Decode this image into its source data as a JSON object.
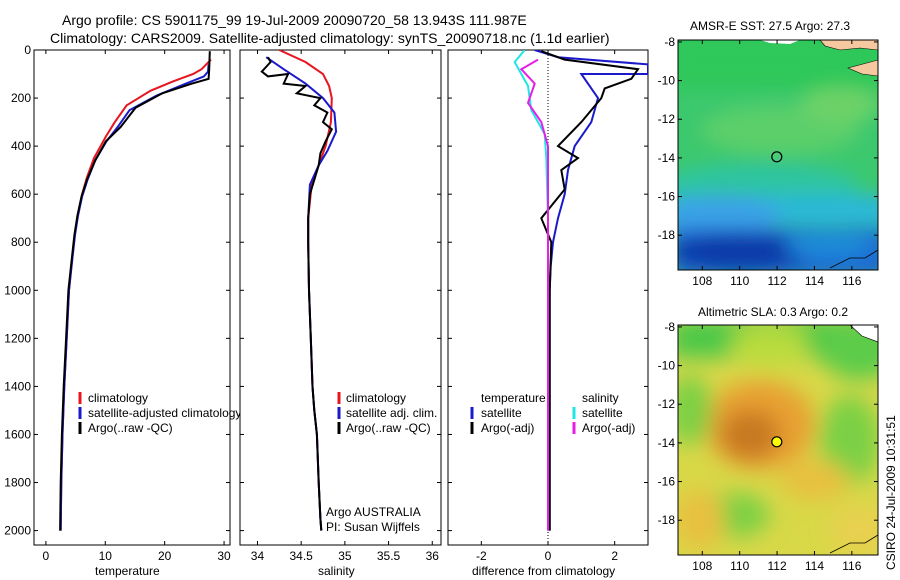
{
  "header": {
    "line1": "Argo profile: CS 5901175_99 19-Jul-2009 20090720_58 13.943S 111.987E",
    "line2": "Climatology: CARS2009. Satellite-adjusted climatology: synTS_20090718.nc (1.1d earlier)"
  },
  "footer": {
    "credit": "CSIRO 24-Jul-2009 10:31:51"
  },
  "colors": {
    "climatology": "#e8141e",
    "satellite": "#1a1acc",
    "argo": "#000000",
    "sal_satellite": "#1ee6e6",
    "sal_argo": "#e61ee6",
    "coast": "#f5c8a0"
  },
  "chart_data": [
    {
      "type": "line",
      "id": "temperature",
      "xlabel": "temperature",
      "ylabel": "",
      "xlim": [
        -2,
        31
      ],
      "ylim": [
        2060,
        0
      ],
      "xticks": [
        0,
        10,
        20,
        30
      ],
      "yticks": [
        0,
        200,
        400,
        600,
        800,
        1000,
        1200,
        1400,
        1600,
        1800,
        2000
      ],
      "legend": [
        "climatology",
        "satellite-adjusted climatology",
        "Argo(..raw -QC)"
      ],
      "series": [
        {
          "name": "climatology",
          "color": "#e8141e",
          "x": [
            27.8,
            26.2,
            24.8,
            21.5,
            17.6,
            13.6,
            11.6,
            10.1,
            8.1,
            6.9,
            6.1,
            5.4,
            4.9,
            4.5,
            3.9,
            3.5,
            3.1,
            2.8,
            2.6,
            2.5
          ],
          "y": [
            40,
            80,
            100,
            130,
            170,
            230,
            300,
            360,
            450,
            530,
            600,
            680,
            760,
            850,
            1000,
            1200,
            1400,
            1600,
            1800,
            2000
          ]
        },
        {
          "name": "satellite",
          "color": "#1a1acc",
          "x": [
            27.4,
            27.3,
            26.6,
            23.6,
            18.6,
            14.1,
            12.1,
            10.2,
            8.3,
            7.0,
            6.1,
            5.4,
            4.9,
            4.5,
            3.9,
            3.5,
            3.1,
            2.8,
            2.6,
            2.5
          ],
          "y": [
            60,
            90,
            110,
            140,
            190,
            250,
            320,
            380,
            460,
            540,
            610,
            690,
            770,
            860,
            1000,
            1200,
            1400,
            1600,
            1800,
            2000
          ]
        },
        {
          "name": "Argo(..raw -QC)",
          "color": "#000000",
          "x": [
            27.6,
            27.5,
            27.4,
            24.6,
            19.6,
            15.1,
            12.6,
            10.1,
            8.3,
            6.9,
            6.0,
            5.3,
            4.8,
            4.4,
            3.8,
            3.4,
            3.0,
            2.7,
            2.5,
            2.4
          ],
          "y": [
            5,
            80,
            120,
            140,
            180,
            240,
            320,
            380,
            460,
            540,
            610,
            690,
            770,
            860,
            1000,
            1200,
            1400,
            1600,
            1800,
            2000
          ]
        }
      ]
    },
    {
      "type": "line",
      "id": "salinity",
      "xlabel": "salinity",
      "ylabel": "",
      "xlim": [
        33.8,
        36.1
      ],
      "ylim": [
        2060,
        0
      ],
      "xticks": [
        34,
        34.5,
        35,
        35.5,
        36
      ],
      "xticklabels": [
        "34",
        "34.5",
        "35",
        "35.5",
        "36"
      ],
      "legend": [
        "climatology",
        "satellite adj. clim.",
        "Argo(..raw -QC)"
      ],
      "annotation": [
        "Argo AUSTRALIA",
        "PI: Susan Wijffels"
      ],
      "series": [
        {
          "name": "climatology",
          "color": "#e8141e",
          "x": [
            34.25,
            34.55,
            34.75,
            34.82,
            34.85,
            34.84,
            34.78,
            34.7,
            34.62,
            34.58,
            34.58,
            34.59,
            34.61,
            34.63,
            34.65,
            34.68,
            34.7,
            34.72,
            34.73
          ],
          "y": [
            0,
            50,
            100,
            150,
            200,
            300,
            400,
            480,
            560,
            700,
            800,
            1000,
            1200,
            1400,
            1500,
            1600,
            1800,
            1950,
            2000
          ]
        },
        {
          "name": "satellite",
          "color": "#1a1acc",
          "x": [
            34.1,
            34.3,
            34.55,
            34.75,
            34.88,
            34.9,
            34.8,
            34.7,
            34.6,
            34.58,
            34.58,
            34.59,
            34.61,
            34.63,
            34.65,
            34.68,
            34.7,
            34.72,
            34.73
          ],
          "y": [
            30,
            80,
            140,
            200,
            260,
            340,
            420,
            480,
            560,
            700,
            800,
            1000,
            1200,
            1400,
            1500,
            1600,
            1800,
            1950,
            2000
          ]
        },
        {
          "name": "Argo(..raw -QC)",
          "color": "#000000",
          "x": [
            34.12,
            34.15,
            34.05,
            34.12,
            34.35,
            34.3,
            34.55,
            34.45,
            34.72,
            34.65,
            34.8,
            34.75,
            34.85,
            34.78,
            34.72,
            34.7,
            34.65,
            34.6,
            34.58,
            34.58,
            34.59,
            34.61,
            34.63,
            34.65,
            34.68,
            34.7,
            34.72,
            34.73
          ],
          "y": [
            30,
            50,
            90,
            110,
            100,
            140,
            150,
            180,
            200,
            230,
            260,
            300,
            330,
            380,
            430,
            480,
            540,
            600,
            700,
            800,
            1000,
            1200,
            1400,
            1500,
            1600,
            1800,
            1950,
            2000
          ]
        }
      ]
    },
    {
      "type": "line",
      "id": "difference",
      "xlabel": "difference from climatology",
      "ylabel": "",
      "xlim": [
        -3,
        3
      ],
      "ylim": [
        2060,
        0
      ],
      "xticks": [
        -2,
        0,
        2
      ],
      "legend_temperature": [
        "temperature",
        "satellite",
        "Argo(-adj)"
      ],
      "legend_salinity": [
        "salinity",
        "satellite",
        "Argo(-adj)"
      ],
      "series": [
        {
          "name": "temperature satellite",
          "color": "#1a1acc",
          "x": [
            -0.4,
            0.3,
            3.0,
            3.0,
            1.0,
            1.5,
            1.3,
            0.8,
            0.6,
            0.5,
            0.3,
            0.15,
            0.08,
            0.05,
            0.05,
            0.05,
            0.05
          ],
          "y": [
            0,
            30,
            60,
            100,
            100,
            200,
            300,
            400,
            500,
            600,
            700,
            800,
            900,
            1000,
            1400,
            1800,
            2000
          ]
        },
        {
          "name": "temperature Argo(-adj)",
          "color": "#000000",
          "x": [
            -0.2,
            0.5,
            2.7,
            2.5,
            1.7,
            1.6,
            1.0,
            0.3,
            0.9,
            0.4,
            0.5,
            -0.2,
            0.1,
            0.05,
            0.05,
            0.05,
            0.05
          ],
          "y": [
            5,
            40,
            80,
            120,
            160,
            200,
            300,
            400,
            450,
            500,
            580,
            700,
            800,
            1000,
            1400,
            1800,
            2000
          ]
        },
        {
          "name": "salinity satellite",
          "color": "#1ee6e6",
          "x": [
            -0.7,
            -1.0,
            -0.8,
            -0.6,
            -0.5,
            -0.1,
            -0.05,
            0.0,
            0.0,
            0.0
          ],
          "y": [
            0,
            50,
            100,
            150,
            250,
            350,
            450,
            700,
            1200,
            2000
          ]
        },
        {
          "name": "salinity Argo(-adj)",
          "color": "#e61ee6",
          "x": [
            -0.3,
            -0.8,
            -0.4,
            -0.6,
            -0.2,
            0.0,
            0.0,
            0.0,
            0.0
          ],
          "y": [
            40,
            80,
            140,
            220,
            300,
            400,
            500,
            1000,
            2000
          ]
        }
      ]
    },
    {
      "type": "heatmap",
      "id": "sst-map",
      "title": "AMSR-E SST: 27.5 Argo: 27.3",
      "xlim": [
        106.7,
        117.4
      ],
      "ylim": [
        -19.8,
        -7.9
      ],
      "xticks": [
        108,
        110,
        112,
        114,
        116
      ],
      "yticks": [
        -8,
        -10,
        -12,
        -14,
        -16,
        -18
      ],
      "argo_position": [
        111.987,
        -13.943
      ]
    },
    {
      "type": "heatmap",
      "id": "sla-map",
      "title": "Altimetric SLA: 0.3 Argo: 0.2",
      "xlim": [
        106.7,
        117.4
      ],
      "ylim": [
        -19.8,
        -7.9
      ],
      "xticks": [
        108,
        110,
        112,
        114,
        116
      ],
      "yticks": [
        -8,
        -10,
        -12,
        -14,
        -16,
        -18
      ],
      "argo_position": [
        111.987,
        -13.943
      ]
    }
  ]
}
